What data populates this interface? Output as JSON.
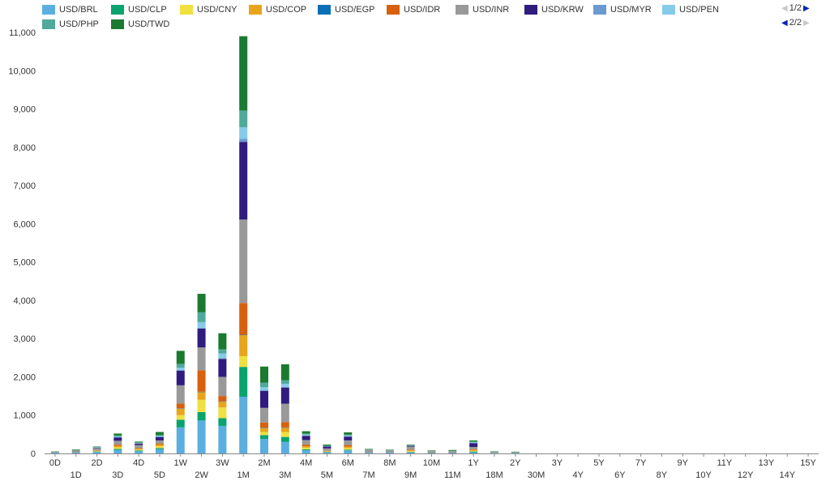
{
  "legend": {
    "rows": [
      [
        {
          "label": "USD/BRL",
          "color": "#5aafe0"
        },
        {
          "label": "USD/CLP",
          "color": "#0aa36e"
        },
        {
          "label": "USD/CNY",
          "color": "#f0e040"
        },
        {
          "label": "USD/COP",
          "color": "#e8a51c"
        },
        {
          "label": "USD/EGP",
          "color": "#0a6fb4"
        },
        {
          "label": "USD/IDR",
          "color": "#d9600d"
        },
        {
          "label": "USD/INR",
          "color": "#999999"
        },
        {
          "label": "USD/KRW",
          "color": "#2f1c7e"
        },
        {
          "label": "USD/MYR",
          "color": "#6a9ad0"
        },
        {
          "label": "USD/PEN",
          "color": "#86cbe8"
        }
      ],
      [
        {
          "label": "USD/PHP",
          "color": "#4eaa9b"
        },
        {
          "label": "USD/TWD",
          "color": "#1a7a30"
        }
      ]
    ],
    "pager_row1": {
      "text": "1/2",
      "left_icon": "left-arrow-icon",
      "right_icon": "right-arrow-icon"
    },
    "pager_row2": {
      "text": "2/2",
      "left_icon": "left-arrow-icon",
      "right_icon": "right-arrow-icon"
    }
  },
  "chart_data": {
    "type": "bar",
    "stacked": true,
    "categories": [
      "0D",
      "1D",
      "2D",
      "3D",
      "4D",
      "5D",
      "1W",
      "2W",
      "3W",
      "1M",
      "2M",
      "3M",
      "4M",
      "5M",
      "6M",
      "7M",
      "8M",
      "9M",
      "10M",
      "11M",
      "1Y",
      "18M",
      "2Y",
      "30M",
      "3Y",
      "4Y",
      "5Y",
      "6Y",
      "7Y",
      "8Y",
      "9Y",
      "10Y",
      "11Y",
      "12Y",
      "13Y",
      "14Y",
      "15Y"
    ],
    "ylim": [
      0,
      11000
    ],
    "yticks": [
      0,
      1000,
      2000,
      3000,
      4000,
      5000,
      6000,
      7000,
      8000,
      9000,
      10000,
      11000
    ],
    "ytick_labels": [
      "0",
      "1,000",
      "2,000",
      "3,000",
      "4,000",
      "5,000",
      "6,000",
      "7,000",
      "8,000",
      "9,000",
      "10,000",
      "11,000"
    ],
    "grid": false,
    "legend_position": "top",
    "series": [
      {
        "name": "USD/BRL",
        "color": "#5aafe0",
        "values": [
          20,
          20,
          40,
          90,
          60,
          110,
          680,
          860,
          720,
          1480,
          380,
          300,
          80,
          30,
          80,
          20,
          20,
          30,
          10,
          10,
          30,
          5,
          5,
          0,
          0,
          0,
          0,
          0,
          0,
          0,
          0,
          0,
          0,
          0,
          0,
          0,
          0
        ]
      },
      {
        "name": "USD/CLP",
        "color": "#0aa36e",
        "values": [
          0,
          0,
          10,
          30,
          20,
          30,
          200,
          220,
          200,
          780,
          100,
          130,
          30,
          10,
          20,
          0,
          0,
          10,
          0,
          0,
          20,
          0,
          0,
          0,
          0,
          0,
          0,
          0,
          0,
          0,
          0,
          0,
          0,
          0,
          0,
          0,
          0
        ]
      },
      {
        "name": "USD/CNY",
        "color": "#f0e040",
        "values": [
          0,
          0,
          10,
          40,
          20,
          50,
          120,
          320,
          280,
          280,
          80,
          130,
          40,
          10,
          40,
          0,
          0,
          20,
          0,
          0,
          20,
          0,
          0,
          0,
          0,
          0,
          0,
          0,
          0,
          0,
          0,
          0,
          0,
          0,
          0,
          0,
          0
        ]
      },
      {
        "name": "USD/COP",
        "color": "#e8a51c",
        "values": [
          0,
          0,
          10,
          40,
          20,
          40,
          170,
          200,
          150,
          550,
          100,
          110,
          40,
          10,
          40,
          0,
          0,
          20,
          0,
          0,
          20,
          0,
          0,
          0,
          0,
          0,
          0,
          0,
          0,
          0,
          0,
          0,
          0,
          0,
          0,
          0,
          0
        ]
      },
      {
        "name": "USD/EGP",
        "color": "#0a6fb4",
        "values": [
          0,
          0,
          0,
          0,
          0,
          0,
          10,
          10,
          10,
          10,
          10,
          10,
          0,
          0,
          0,
          0,
          0,
          0,
          0,
          0,
          0,
          0,
          0,
          0,
          0,
          0,
          0,
          0,
          0,
          0,
          0,
          0,
          0,
          0,
          0,
          0,
          0
        ]
      },
      {
        "name": "USD/IDR",
        "color": "#d9600d",
        "values": [
          0,
          0,
          10,
          30,
          20,
          30,
          120,
          560,
          140,
          830,
          140,
          140,
          40,
          10,
          40,
          0,
          0,
          20,
          0,
          0,
          20,
          0,
          0,
          0,
          0,
          0,
          0,
          0,
          0,
          0,
          0,
          0,
          0,
          0,
          0,
          0,
          0
        ]
      },
      {
        "name": "USD/INR",
        "color": "#999999",
        "values": [
          20,
          60,
          60,
          100,
          80,
          80,
          480,
          600,
          500,
          2180,
          380,
          480,
          120,
          60,
          120,
          80,
          60,
          80,
          50,
          50,
          60,
          30,
          20,
          0,
          0,
          0,
          0,
          0,
          0,
          0,
          0,
          0,
          0,
          0,
          0,
          0,
          0
        ]
      },
      {
        "name": "USD/KRW",
        "color": "#2f1c7e",
        "values": [
          0,
          0,
          10,
          90,
          40,
          90,
          380,
          490,
          470,
          2030,
          440,
          420,
          110,
          50,
          100,
          0,
          0,
          20,
          0,
          0,
          100,
          0,
          0,
          0,
          0,
          0,
          0,
          0,
          0,
          0,
          0,
          0,
          0,
          0,
          0,
          0,
          0
        ]
      },
      {
        "name": "USD/MYR",
        "color": "#6a9ad0",
        "values": [
          0,
          0,
          0,
          0,
          0,
          0,
          20,
          20,
          20,
          80,
          20,
          20,
          10,
          0,
          10,
          0,
          0,
          0,
          0,
          0,
          0,
          0,
          0,
          0,
          0,
          0,
          0,
          0,
          0,
          0,
          0,
          0,
          0,
          0,
          0,
          0,
          0
        ]
      },
      {
        "name": "USD/PEN",
        "color": "#86cbe8",
        "values": [
          0,
          0,
          10,
          20,
          10,
          20,
          60,
          150,
          120,
          300,
          80,
          80,
          20,
          10,
          20,
          0,
          0,
          10,
          0,
          0,
          20,
          0,
          0,
          0,
          0,
          0,
          0,
          0,
          0,
          0,
          0,
          0,
          0,
          0,
          0,
          0,
          0
        ]
      },
      {
        "name": "USD/PHP",
        "color": "#4eaa9b",
        "values": [
          0,
          0,
          10,
          30,
          20,
          30,
          100,
          260,
          110,
          440,
          120,
          90,
          30,
          10,
          20,
          10,
          10,
          10,
          10,
          10,
          20,
          10,
          10,
          0,
          0,
          0,
          0,
          0,
          0,
          0,
          0,
          0,
          0,
          0,
          0,
          0,
          0
        ]
      },
      {
        "name": "USD/TWD",
        "color": "#1a7a30",
        "values": [
          10,
          20,
          10,
          50,
          20,
          80,
          340,
          480,
          420,
          1940,
          420,
          420,
          60,
          30,
          60,
          10,
          10,
          10,
          10,
          20,
          30,
          10,
          10,
          0,
          0,
          0,
          0,
          0,
          0,
          0,
          0,
          0,
          0,
          0,
          0,
          0,
          0
        ]
      }
    ]
  }
}
